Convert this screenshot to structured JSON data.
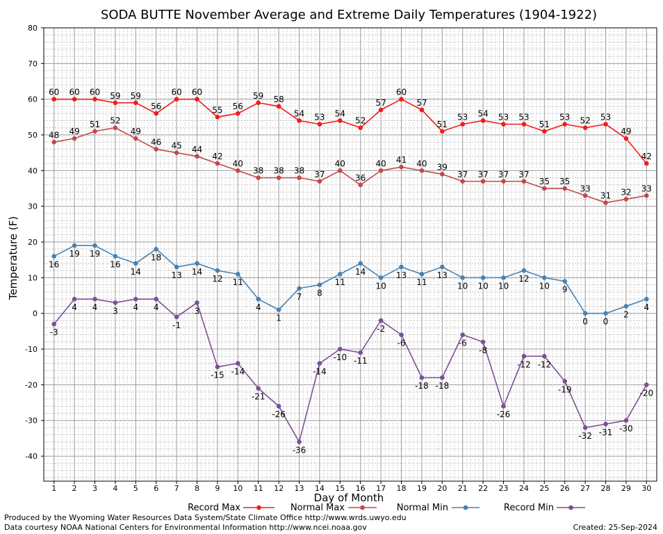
{
  "chart_data": {
    "type": "line",
    "title": "SODA BUTTE November Average and Extreme Daily Temperatures (1904-1922)",
    "xlabel": "Day of Month",
    "ylabel": "Temperature (F)",
    "ylim": [
      -47,
      80
    ],
    "xlim": [
      0.5,
      30.5
    ],
    "yticks": [
      80,
      70,
      60,
      50,
      40,
      30,
      20,
      10,
      0,
      -10,
      -20,
      -30,
      -40
    ],
    "x": [
      1,
      2,
      3,
      4,
      5,
      6,
      7,
      8,
      9,
      10,
      11,
      12,
      13,
      14,
      15,
      16,
      17,
      18,
      19,
      20,
      21,
      22,
      23,
      24,
      25,
      26,
      27,
      28,
      29,
      30
    ],
    "grid": true,
    "legend_position": "bottom",
    "series": [
      {
        "name": "Record Max",
        "color": "#ee1c1c",
        "label_position": "above",
        "values": [
          60,
          60,
          60,
          59,
          59,
          56,
          60,
          60,
          55,
          56,
          59,
          58,
          54,
          53,
          54,
          52,
          57,
          60,
          57,
          51,
          53,
          54,
          53,
          53,
          51,
          53,
          52,
          53,
          49,
          42
        ]
      },
      {
        "name": "Normal Max",
        "color": "#c04a4a",
        "label_position": "above",
        "values": [
          48,
          49,
          51,
          52,
          49,
          46,
          45,
          44,
          42,
          40,
          38,
          38,
          38,
          37,
          40,
          36,
          40,
          41,
          40,
          39,
          37,
          37,
          37,
          37,
          35,
          35,
          33,
          31,
          32,
          33
        ]
      },
      {
        "name": "Normal Min",
        "color": "#4682b4",
        "label_position": "below",
        "values": [
          16,
          19,
          19,
          16,
          14,
          18,
          13,
          14,
          12,
          11,
          4,
          1,
          7,
          8,
          11,
          14,
          10,
          13,
          11,
          13,
          10,
          10,
          10,
          12,
          10,
          9,
          0,
          0,
          2,
          4
        ]
      },
      {
        "name": "Record Min",
        "color": "#7b4f96",
        "label_position": "below",
        "values": [
          -3,
          4,
          4,
          3,
          4,
          4,
          -1,
          3,
          -15,
          -14,
          -21,
          -26,
          -36,
          -14,
          -10,
          -11,
          -2,
          -6,
          -18,
          -18,
          -6,
          -8,
          -26,
          -12,
          -12,
          -19,
          -32,
          -31,
          -30,
          -20
        ]
      }
    ]
  },
  "footer": {
    "credit_line1": "Produced by the Wyoming Water Resources Data System/State Climate Office http://www.wrds.uwyo.edu",
    "credit_line2": "Data courtesy NOAA National Centers for Environmental Information http://www.ncei.noaa.gov",
    "created": "Created:  25-Sep-2024"
  }
}
